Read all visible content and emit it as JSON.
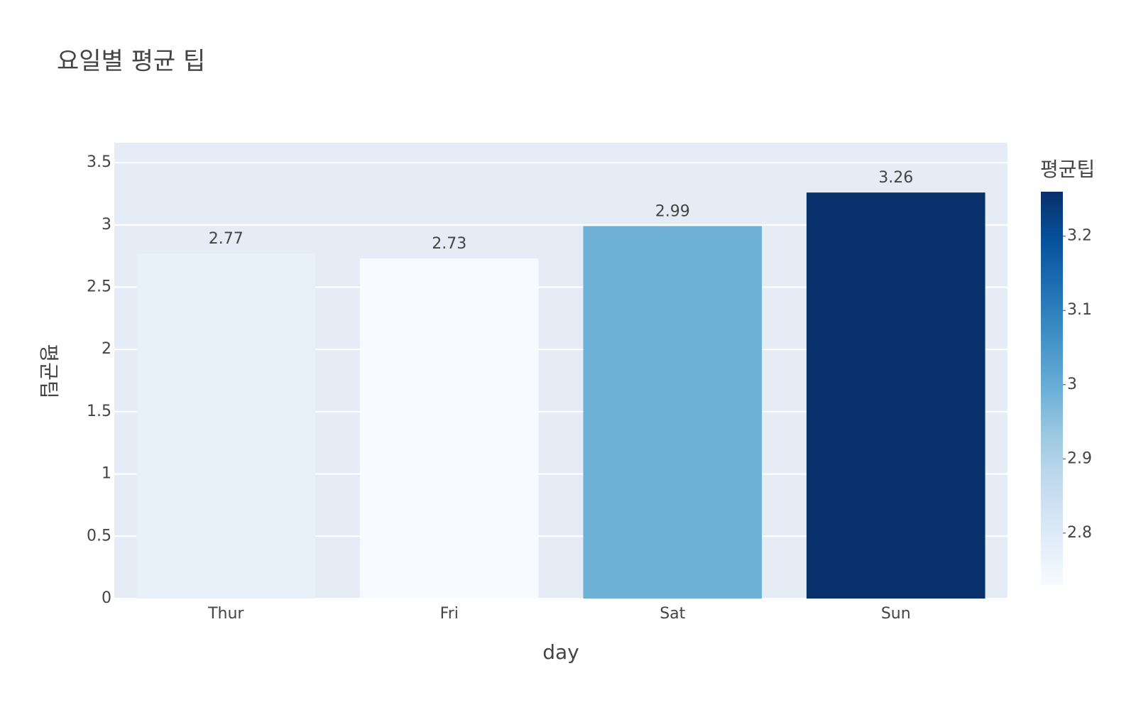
{
  "chart_data": {
    "type": "bar",
    "title": "요일별 평균 팁",
    "x_label": "day",
    "y_label": "평균팁",
    "categories": [
      "Thur",
      "Fri",
      "Sat",
      "Sun"
    ],
    "values": [
      2.77,
      2.73,
      2.99,
      3.26
    ],
    "ylim": [
      0,
      3.66
    ],
    "yticks": [
      0,
      0.5,
      1,
      1.5,
      2,
      2.5,
      3,
      3.5
    ],
    "grid": true,
    "colorscale": [
      "#f7fbff",
      "#deebf7",
      "#c6dbef",
      "#9ecae1",
      "#6baed6",
      "#4292c6",
      "#2171b5",
      "#08519c",
      "#08306b"
    ],
    "colorbar": {
      "title": "평균팁",
      "lim": [
        2.73,
        3.26
      ],
      "ticks": [
        2.8,
        2.9,
        3,
        3.1,
        3.2
      ]
    }
  }
}
